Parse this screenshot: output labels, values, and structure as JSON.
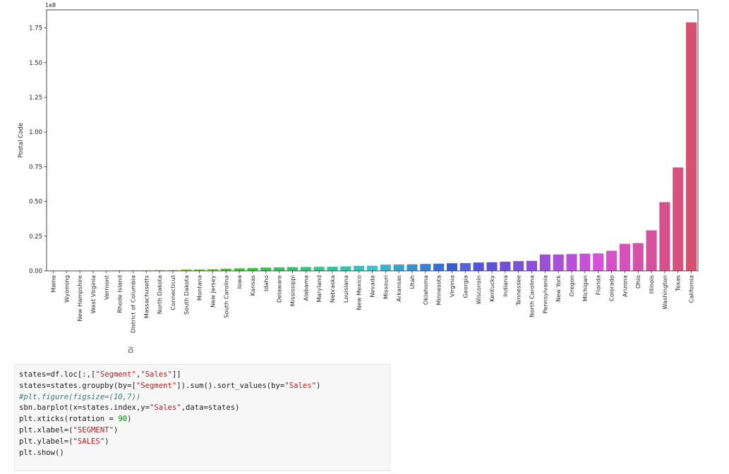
{
  "chart_data": {
    "type": "bar",
    "title": "",
    "xlabel": "Di",
    "ylabel": "Postal Code",
    "offset_text": "1e8",
    "ylim": [
      0,
      1.88
    ],
    "y_ticks": [
      0.0,
      0.25,
      0.5,
      0.75,
      1.0,
      1.25,
      1.5,
      1.75
    ],
    "y_tick_labels": [
      "0.00",
      "0.25",
      "0.50",
      "0.75",
      "1.00",
      "1.25",
      "1.50",
      "1.75"
    ],
    "grid": false,
    "legend": "none",
    "categories": [
      "Maine",
      "Wyoming",
      "New Hampshire",
      "West Virginia",
      "Vermont",
      "Rhode Island",
      "District of Columbia",
      "Massachusetts",
      "North Dakota",
      "Connecticut",
      "South Dakota",
      "Montana",
      "New Jersey",
      "South Carolina",
      "Iowa",
      "Kansas",
      "Idaho",
      "Delaware",
      "Mississippi",
      "Alabama",
      "Maryland",
      "Nebraska",
      "Louisiana",
      "New Mexico",
      "Nevada",
      "Missouri",
      "Arkansas",
      "Utah",
      "Oklahoma",
      "Minnesota",
      "Virginia",
      "Georgia",
      "Wisconsin",
      "Kentucky",
      "Indiana",
      "Tennessee",
      "North Carolina",
      "Pennsylvania",
      "New York",
      "Oregon",
      "Michigan",
      "Florida",
      "Colorado",
      "Arizona",
      "Ohio",
      "Illinois",
      "Washington",
      "Texas",
      "California"
    ],
    "values": [
      0.0,
      0.0,
      0.0,
      0.0,
      0.0,
      0.004,
      0.004,
      0.005,
      0.006,
      0.006,
      0.01,
      0.011,
      0.012,
      0.016,
      0.018,
      0.02,
      0.024,
      0.025,
      0.027,
      0.028,
      0.029,
      0.03,
      0.032,
      0.036,
      0.037,
      0.045,
      0.046,
      0.047,
      0.05,
      0.052,
      0.055,
      0.056,
      0.06,
      0.062,
      0.066,
      0.07,
      0.072,
      0.118,
      0.118,
      0.121,
      0.124,
      0.126,
      0.145,
      0.195,
      0.2,
      0.292,
      0.495,
      0.745,
      1.79
    ]
  },
  "code_cell": {
    "lines": [
      [
        {
          "t": "states=df.loc[:,[",
          "c": ""
        },
        {
          "t": "\"Segment\"",
          "c": "str"
        },
        {
          "t": ",",
          "c": ""
        },
        {
          "t": "\"Sales\"",
          "c": "str"
        },
        {
          "t": "]]",
          "c": ""
        }
      ],
      [
        {
          "t": "states=states.groupby(by=[",
          "c": ""
        },
        {
          "t": "\"Segment\"",
          "c": "str"
        },
        {
          "t": "]).sum().sort_values(by=",
          "c": ""
        },
        {
          "t": "\"Sales\"",
          "c": "str"
        },
        {
          "t": ")",
          "c": ""
        }
      ],
      [
        {
          "t": "#plt.figure(figsize=(10,7))",
          "c": "com"
        }
      ],
      [
        {
          "t": "sbn.barplot(x=states.index,y=",
          "c": ""
        },
        {
          "t": "\"Sales\"",
          "c": "str"
        },
        {
          "t": ",data=states)",
          "c": ""
        }
      ],
      [
        {
          "t": "plt.xticks(rotation = ",
          "c": ""
        },
        {
          "t": "90",
          "c": "num"
        },
        {
          "t": ")",
          "c": ""
        }
      ],
      [
        {
          "t": "plt.xlabel=(",
          "c": ""
        },
        {
          "t": "\"SEGMENT\"",
          "c": "str"
        },
        {
          "t": ")",
          "c": ""
        }
      ],
      [
        {
          "t": "plt.ylabel=(",
          "c": ""
        },
        {
          "t": "\"SALES\"",
          "c": "str"
        },
        {
          "t": ")",
          "c": ""
        }
      ],
      [
        {
          "t": "plt.show()",
          "c": ""
        }
      ]
    ]
  }
}
